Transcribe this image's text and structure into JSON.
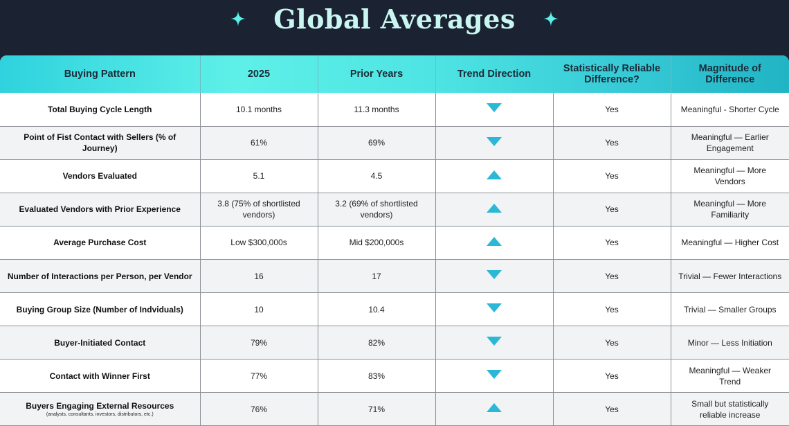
{
  "title": "Global Averages",
  "colors": {
    "background": "#1b2333",
    "title": "#c9f6f1",
    "sparkle": "#5ef0e8",
    "header_gradient_start": "#2fd2de",
    "header_gradient_end": "#20b4c4",
    "trend_arrow": "#2bb8d6"
  },
  "icons": {
    "left_decoration": "sparkle-icon",
    "right_decoration": "sparkle-icon",
    "trend_up": "triangle-up-icon",
    "trend_down": "triangle-down-icon"
  },
  "table": {
    "headers": [
      "Buying Pattern",
      "2025",
      "Prior Years",
      "Trend Direction",
      "Statistically Reliable Difference?",
      "Magnitude of Difference"
    ],
    "rows": [
      {
        "pattern": "Total Buying Cycle Length",
        "note": "",
        "y2025": "10.1 months",
        "prior": "11.3 months",
        "trend": "down",
        "reliable": "Yes",
        "magnitude": "Meaningful - Shorter Cycle"
      },
      {
        "pattern": "Point of Fist Contact with Sellers (% of Journey)",
        "note": "",
        "y2025": "61%",
        "prior": "69%",
        "trend": "down",
        "reliable": "Yes",
        "magnitude": "Meaningful — Earlier Engagement"
      },
      {
        "pattern": "Vendors Evaluated",
        "note": "",
        "y2025": "5.1",
        "prior": "4.5",
        "trend": "up",
        "reliable": "Yes",
        "magnitude": "Meaningful — More Vendors"
      },
      {
        "pattern": "Evaluated Vendors with Prior Experience",
        "note": "",
        "y2025": "3.8 (75% of shortlisted vendors)",
        "prior": "3.2 (69% of shortlisted vendors)",
        "trend": "up",
        "reliable": "Yes",
        "magnitude": "Meaningful — More Familiarity"
      },
      {
        "pattern": "Average Purchase Cost",
        "note": "",
        "y2025": "Low $300,000s",
        "prior": "Mid $200,000s",
        "trend": "up",
        "reliable": "Yes",
        "magnitude": "Meaningful — Higher Cost"
      },
      {
        "pattern": "Number of Interactions per Person, per Vendor",
        "note": "",
        "y2025": "16",
        "prior": "17",
        "trend": "down",
        "reliable": "Yes",
        "magnitude": "Trivial — Fewer Interactions"
      },
      {
        "pattern": "Buying Group Size (Number of Indviduals)",
        "note": "",
        "y2025": "10",
        "prior": "10.4",
        "trend": "down",
        "reliable": "Yes",
        "magnitude": "Trivial — Smaller Groups"
      },
      {
        "pattern": "Buyer-Initiated Contact",
        "note": "",
        "y2025": "79%",
        "prior": "82%",
        "trend": "down",
        "reliable": "Yes",
        "magnitude": "Minor — Less Initiation"
      },
      {
        "pattern": "Contact with Winner First",
        "note": "",
        "y2025": "77%",
        "prior": "83%",
        "trend": "down",
        "reliable": "Yes",
        "magnitude": "Meaningful — Weaker Trend"
      },
      {
        "pattern": "Buyers Engaging External Resources",
        "note": "(analysts, consultants, investors, distributors, etc.)",
        "y2025": "76%",
        "prior": "71%",
        "trend": "up",
        "reliable": "Yes",
        "magnitude": "Small but statistically reliable increase"
      }
    ]
  }
}
